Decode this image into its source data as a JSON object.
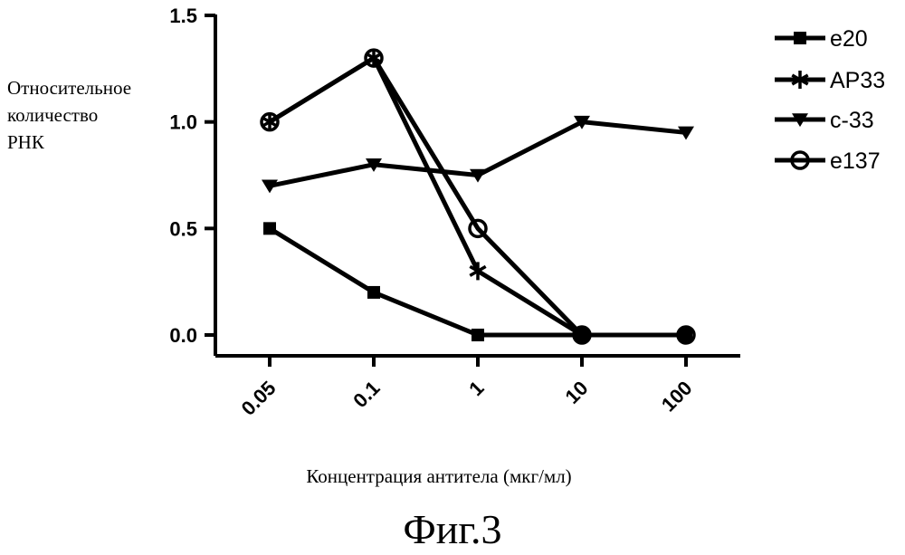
{
  "chart_data": {
    "type": "line",
    "categories": [
      "0.05",
      "0.1",
      "1",
      "10",
      "100"
    ],
    "ylabel": [
      "Относительное",
      "количество",
      "РНК"
    ],
    "xlabel": "Концентрация антитела (мкг/мл)",
    "y_ticks": [
      "0.0",
      "0.5",
      "1.0",
      "1.5"
    ],
    "ylim": [
      0,
      1.5
    ],
    "legend_position": "top-right",
    "series": [
      {
        "name": "e20",
        "marker": "square",
        "values": [
          0.5,
          0.2,
          0.0,
          0.0,
          0.0
        ]
      },
      {
        "name": "AP33",
        "marker": "asterisk",
        "values": [
          1.0,
          1.3,
          0.3,
          0.0,
          0.0
        ]
      },
      {
        "name": "c-33",
        "marker": "triangle-down",
        "values": [
          0.7,
          0.8,
          0.75,
          1.0,
          0.95
        ]
      },
      {
        "name": "e137",
        "marker": "circle-open",
        "values": [
          1.0,
          1.3,
          0.5,
          0.0,
          0.0
        ]
      }
    ],
    "colors": {
      "line": "#000000"
    }
  },
  "figure_caption": "Фиг.3"
}
